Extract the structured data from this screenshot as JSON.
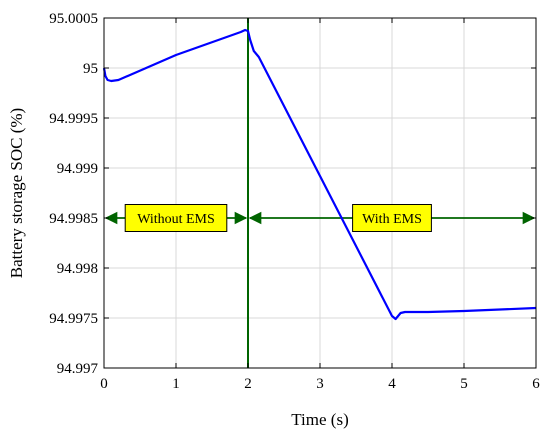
{
  "chart_data": {
    "type": "line",
    "title": "",
    "xlabel": "Time (s)",
    "ylabel": "Battery storage SOC (%)",
    "xlim": [
      0,
      6
    ],
    "ylim": [
      94.997,
      95.0005
    ],
    "xticks": [
      0,
      1,
      2,
      3,
      4,
      5,
      6
    ],
    "xtick_labels": [
      "0",
      "1",
      "2",
      "3",
      "4",
      "5",
      "6"
    ],
    "yticks": [
      94.997,
      94.9975,
      94.998,
      94.9985,
      94.999,
      94.9995,
      95,
      95.0005
    ],
    "ytick_labels": [
      "94.997",
      "94.9975",
      "94.998",
      "94.9985",
      "94.999",
      "94.9995",
      "95",
      "95.0005"
    ],
    "grid": true,
    "colors": {
      "series": "#0000ff",
      "annotation": "#006400",
      "box_fill": "#ffff00"
    },
    "series": [
      {
        "name": "",
        "x": [
          0,
          0.02,
          0.05,
          0.1,
          0.2,
          1.0,
          1.9,
          1.96,
          2.0,
          2.03,
          2.08,
          2.15,
          4.0,
          4.05,
          4.12,
          4.18,
          4.5,
          5.0,
          6.0
        ],
        "y": [
          95.0,
          94.99992,
          94.99988,
          94.99987,
          94.99988,
          95.00013,
          95.00036,
          95.00038,
          95.00037,
          95.00028,
          95.00017,
          95.00011,
          94.99752,
          94.99749,
          94.99755,
          94.99756,
          94.99756,
          94.99757,
          94.9976
        ]
      }
    ],
    "annotations": {
      "vertical_line_x": 2,
      "arrow_y": 94.9985,
      "left_label": "Without EMS",
      "left_label_x": 1.0,
      "right_label": "With EMS",
      "right_label_x": 4.0
    }
  }
}
